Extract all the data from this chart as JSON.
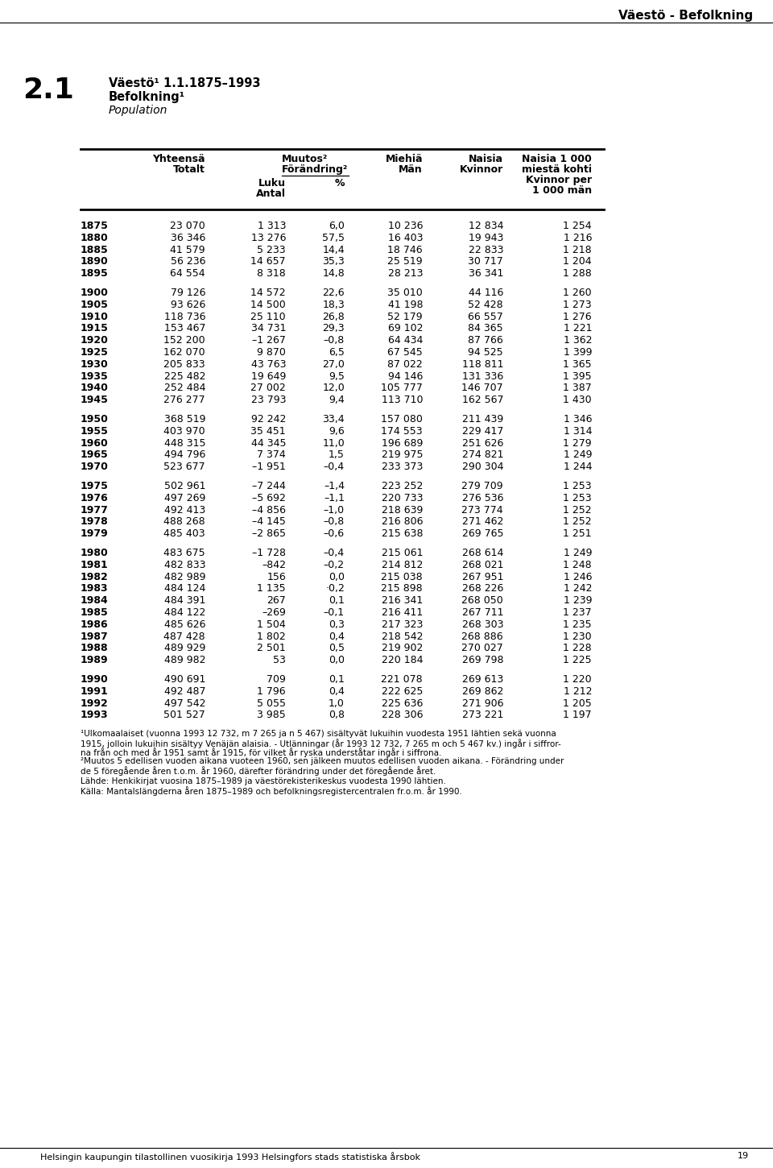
{
  "page_header": "Väestö - Befolkning",
  "section_num": "2.1",
  "title_line1": "Väestö¹ 1.1.1875–1993",
  "title_line2": "Befolkning¹",
  "title_line3": "Population",
  "rows": [
    [
      "1875",
      "23 070",
      "1 313",
      "6,0",
      "10 236",
      "12 834",
      "1 254"
    ],
    [
      "1880",
      "36 346",
      "13 276",
      "57,5",
      "16 403",
      "19 943",
      "1 216"
    ],
    [
      "1885",
      "41 579",
      "5 233",
      "14,4",
      "18 746",
      "22 833",
      "1 218"
    ],
    [
      "1890",
      "56 236",
      "14 657",
      "35,3",
      "25 519",
      "30 717",
      "1 204"
    ],
    [
      "1895",
      "64 554",
      "8 318",
      "14,8",
      "28 213",
      "36 341",
      "1 288"
    ],
    [
      "",
      "",
      "",
      "",
      "",
      "",
      ""
    ],
    [
      "1900",
      "79 126",
      "14 572",
      "22,6",
      "35 010",
      "44 116",
      "1 260"
    ],
    [
      "1905",
      "93 626",
      "14 500",
      "18,3",
      "41 198",
      "52 428",
      "1 273"
    ],
    [
      "1910",
      "118 736",
      "25 110",
      "26,8",
      "52 179",
      "66 557",
      "1 276"
    ],
    [
      "1915",
      "153 467",
      "34 731",
      "29,3",
      "69 102",
      "84 365",
      "1 221"
    ],
    [
      "1920",
      "152 200",
      "–1 267",
      "–0,8",
      "64 434",
      "87 766",
      "1 362"
    ],
    [
      "1925",
      "162 070",
      "9 870",
      "6,5",
      "67 545",
      "94 525",
      "1 399"
    ],
    [
      "1930",
      "205 833",
      "43 763",
      "27,0",
      "87 022",
      "118 811",
      "1 365"
    ],
    [
      "1935",
      "225 482",
      "19 649",
      "9,5",
      "94 146",
      "131 336",
      "1 395"
    ],
    [
      "1940",
      "252 484",
      "27 002",
      "12,0",
      "105 777",
      "146 707",
      "1 387"
    ],
    [
      "1945",
      "276 277",
      "23 793",
      "9,4",
      "113 710",
      "162 567",
      "1 430"
    ],
    [
      "",
      "",
      "",
      "",
      "",
      "",
      ""
    ],
    [
      "1950",
      "368 519",
      "92 242",
      "33,4",
      "157 080",
      "211 439",
      "1 346"
    ],
    [
      "1955",
      "403 970",
      "35 451",
      "9,6",
      "174 553",
      "229 417",
      "1 314"
    ],
    [
      "1960",
      "448 315",
      "44 345",
      "11,0",
      "196 689",
      "251 626",
      "1 279"
    ],
    [
      "1965",
      "494 796",
      "7 374",
      "1,5",
      "219 975",
      "274 821",
      "1 249"
    ],
    [
      "1970",
      "523 677",
      "–1 951",
      "–0,4",
      "233 373",
      "290 304",
      "1 244"
    ],
    [
      "",
      "",
      "",
      "",
      "",
      "",
      ""
    ],
    [
      "1975",
      "502 961",
      "–7 244",
      "–1,4",
      "223 252",
      "279 709",
      "1 253"
    ],
    [
      "1976",
      "497 269",
      "–5 692",
      "–1,1",
      "220 733",
      "276 536",
      "1 253"
    ],
    [
      "1977",
      "492 413",
      "–4 856",
      "–1,0",
      "218 639",
      "273 774",
      "1 252"
    ],
    [
      "1978",
      "488 268",
      "–4 145",
      "–0,8",
      "216 806",
      "271 462",
      "1 252"
    ],
    [
      "1979",
      "485 403",
      "–2 865",
      "–0,6",
      "215 638",
      "269 765",
      "1 251"
    ],
    [
      "",
      "",
      "",
      "",
      "",
      "",
      ""
    ],
    [
      "1980",
      "483 675",
      "–1 728",
      "–0,4",
      "215 061",
      "268 614",
      "1 249"
    ],
    [
      "1981",
      "482 833",
      "–842",
      "–0,2",
      "214 812",
      "268 021",
      "1 248"
    ],
    [
      "1982",
      "482 989",
      "156",
      "0,0",
      "215 038",
      "267 951",
      "1 246"
    ],
    [
      "1983",
      "484 124",
      "1 135",
      "·0,2",
      "215 898",
      "268 226",
      "1 242"
    ],
    [
      "1984",
      "484 391",
      "267",
      "0,1",
      "216 341",
      "268 050",
      "1 239"
    ],
    [
      "1985",
      "484 122",
      "–269",
      "–0,1",
      "216 411",
      "267 711",
      "1 237"
    ],
    [
      "1986",
      "485 626",
      "1 504",
      "0,3",
      "217 323",
      "268 303",
      "1 235"
    ],
    [
      "1987",
      "487 428",
      "1 802",
      "0,4",
      "218 542",
      "268 886",
      "1 230"
    ],
    [
      "1988",
      "489 929",
      "2 501",
      "0,5",
      "219 902",
      "270 027",
      "1 228"
    ],
    [
      "1989",
      "489 982",
      "53",
      "0,0",
      "220 184",
      "269 798",
      "1 225"
    ],
    [
      "",
      "",
      "",
      "",
      "",
      "",
      ""
    ],
    [
      "1990",
      "490 691",
      "709",
      "0,1",
      "221 078",
      "269 613",
      "1 220"
    ],
    [
      "1991",
      "492 487",
      "1 796",
      "0,4",
      "222 625",
      "269 862",
      "1 212"
    ],
    [
      "1992",
      "497 542",
      "5 055",
      "1,0",
      "225 636",
      "271 906",
      "1 205"
    ],
    [
      "1993",
      "501 527",
      "3 985",
      "0,8",
      "228 306",
      "273 221",
      "1 197"
    ]
  ],
  "footnote1": "¹Ulkomaalaiset (vuonna 1993 12 732, m 7 265 ja n 5 467) sisältyvät lukuihin vuodesta 1951 lähtien sekä vuonna",
  "footnote1b": "1915, jolloin lukuihin sisältyy Venäjän alaisia. - Utlänningar (år 1993 12 732, 7 265 m och 5 467 kv.) ingår i siffror-",
  "footnote1c": "na från och med år 1951 samt år 1915, för vilket år ryska underståtar ingår i siffrona.",
  "footnote2": "²Muutos 5 edellisen vuoden aikana vuoteen 1960, sen jälkeen muutos edellisen vuoden aikana. - Förändring under",
  "footnote2b": "de 5 föregående åren t.o.m. år 1960, därefter förändring under det föregående året.",
  "source1": "Lähde: Henkikirjat vuosina 1875–1989 ja väestörekisterikeskus vuodesta 1990 lähtien.",
  "source2": "Källa: Mantalslängderna åren 1875–1989 och befolkningsregistercentralen fr.o.m. år 1990.",
  "bottom_text": "Helsingin kaupungin tilastollinen vuosikirja 1993 Helsingfors stads statistiska årsbok",
  "bottom_page": "19"
}
